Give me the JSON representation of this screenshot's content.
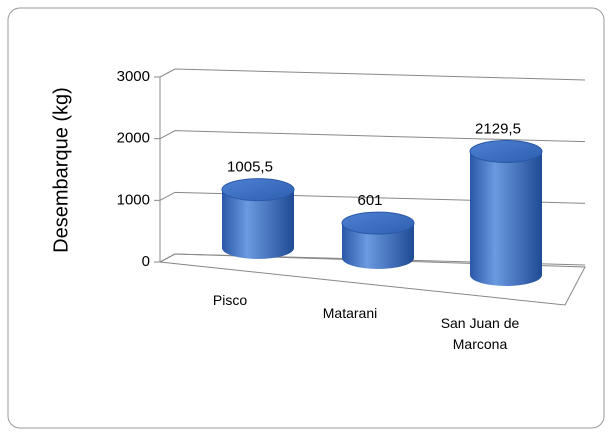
{
  "chart_data": {
    "type": "bar3d",
    "y_label": "Desembarque (kg)",
    "categories": [
      "Pisco",
      "Matarani",
      "San Juan de Marcona"
    ],
    "values": [
      1005.5,
      601,
      2129.5
    ],
    "value_labels": [
      "1005,5",
      "601",
      "2129,5"
    ],
    "color": "#3d6fc0",
    "ylim": [
      0,
      3000
    ],
    "yticks": [
      0,
      1000,
      2000,
      3000
    ],
    "grid": true
  }
}
